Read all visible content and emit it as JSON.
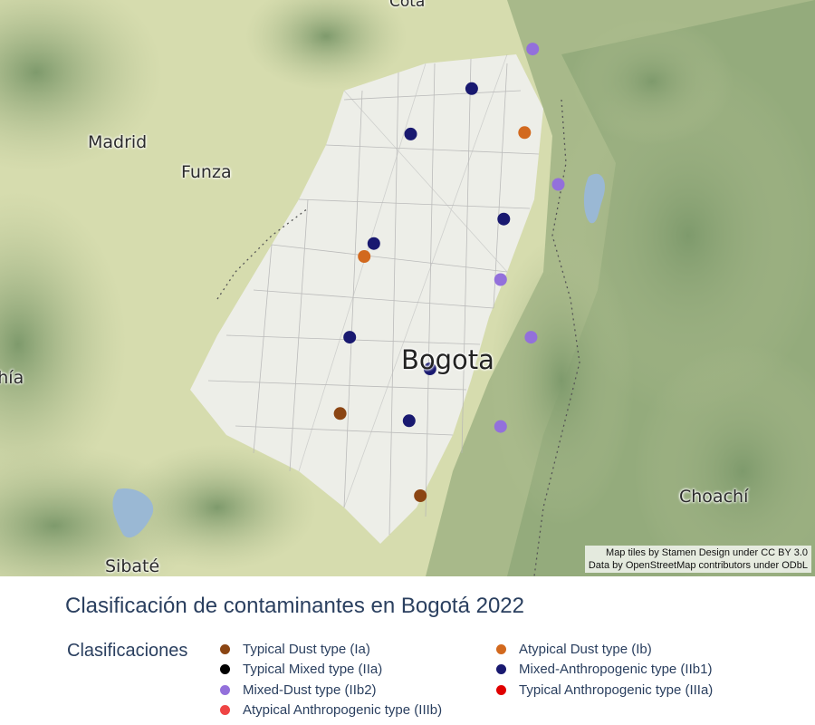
{
  "chart": {
    "title": "Clasificación de contaminantes en Bogotá 2022",
    "legend_title": "Clasificaciones",
    "categories": [
      {
        "id": "Ia",
        "label": "Typical Dust type (Ia)",
        "color": "#8b4513"
      },
      {
        "id": "Ib",
        "label": "Atypical Dust type (Ib)",
        "color": "#d2691e"
      },
      {
        "id": "IIa",
        "label": "Typical Mixed type (IIa)",
        "color": "#000000"
      },
      {
        "id": "IIb1",
        "label": "Mixed-Anthropogenic type (IIb1)",
        "color": "#191970"
      },
      {
        "id": "IIb2",
        "label": "Mixed-Dust type (IIb2)",
        "color": "#9370db"
      },
      {
        "id": "IIIa",
        "label": "Typical Anthropogenic type (IIIa)",
        "color": "#e00000"
      },
      {
        "id": "IIIb",
        "label": "Atypical Anthropogenic type (IIIb)",
        "color": "#ef4444"
      }
    ]
  },
  "map": {
    "place_labels": [
      "Cota",
      "Madrid",
      "Funza",
      "Bogota",
      "Chía",
      "Choachí",
      "Sibaté"
    ],
    "attribution_lines": [
      "Map tiles by Stamen Design under CC BY 3.0",
      "Data by OpenStreetMap contributors under ODbL"
    ]
  },
  "chart_data": {
    "type": "scatter",
    "title": "Clasificación de contaminantes en Bogotá 2022",
    "legend_title": "Clasificaciones",
    "points": [
      {
        "id": "s01",
        "class": "IIb2",
        "lon": -74.032,
        "lat": 4.756
      },
      {
        "id": "s02",
        "class": "IIb1",
        "lon": -74.07,
        "lat": 4.7285
      },
      {
        "id": "s03",
        "class": "IIb1",
        "lon": -74.108,
        "lat": 4.697
      },
      {
        "id": "s04",
        "class": "Ib",
        "lon": -74.037,
        "lat": 4.698
      },
      {
        "id": "s05",
        "class": "IIb2",
        "lon": -74.016,
        "lat": 4.662
      },
      {
        "id": "s06",
        "class": "IIb1",
        "lon": -74.05,
        "lat": 4.638
      },
      {
        "id": "s07",
        "class": "IIb1",
        "lon": -74.131,
        "lat": 4.621
      },
      {
        "id": "s08",
        "class": "Ib",
        "lon": -74.137,
        "lat": 4.612
      },
      {
        "id": "s09",
        "class": "IIb2",
        "lon": -74.052,
        "lat": 4.596
      },
      {
        "id": "s10",
        "class": "IIb1",
        "lon": -74.146,
        "lat": 4.556
      },
      {
        "id": "s11",
        "class": "IIb2",
        "lon": -74.033,
        "lat": 4.556
      },
      {
        "id": "s12",
        "class": "IIb1",
        "lon": -74.096,
        "lat": 4.534
      },
      {
        "id": "s13",
        "class": "Ia",
        "lon": -74.152,
        "lat": 4.503
      },
      {
        "id": "s14",
        "class": "IIb1",
        "lon": -74.109,
        "lat": 4.498
      },
      {
        "id": "s15",
        "class": "IIb2",
        "lon": -74.052,
        "lat": 4.494
      },
      {
        "id": "s16",
        "class": "Ia",
        "lon": -74.102,
        "lat": 4.446
      }
    ],
    "lon_range": [
      -74.364,
      -73.856
    ],
    "lat_range": [
      4.39,
      4.79
    ]
  }
}
